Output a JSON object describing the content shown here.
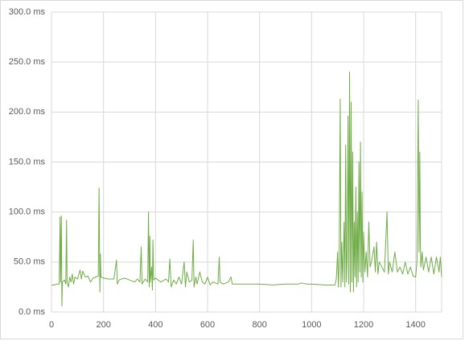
{
  "chart_data": {
    "type": "line",
    "x": [
      0,
      10,
      20,
      30,
      33,
      35,
      38,
      40,
      42,
      50,
      55,
      58,
      60,
      65,
      70,
      75,
      80,
      85,
      90,
      100,
      110,
      115,
      120,
      130,
      140,
      150,
      160,
      170,
      180,
      183,
      186,
      188,
      190,
      200,
      220,
      240,
      250,
      253,
      260,
      280,
      300,
      320,
      330,
      340,
      345,
      348,
      360,
      370,
      373,
      376,
      378,
      380,
      385,
      388,
      390,
      393,
      400,
      420,
      440,
      450,
      455,
      460,
      470,
      480,
      490,
      500,
      510,
      515,
      520,
      530,
      540,
      545,
      548,
      555,
      560,
      570,
      580,
      590,
      600,
      610,
      620,
      640,
      645,
      648,
      660,
      680,
      690,
      695,
      700,
      750,
      800,
      850,
      900,
      950,
      960,
      980,
      1000,
      1050,
      1090,
      1095,
      1100,
      1103,
      1106,
      1110,
      1113,
      1116,
      1120,
      1125,
      1128,
      1131,
      1134,
      1137,
      1140,
      1143,
      1146,
      1149,
      1152,
      1155,
      1158,
      1161,
      1164,
      1167,
      1170,
      1173,
      1176,
      1179,
      1182,
      1185,
      1188,
      1191,
      1194,
      1197,
      1200,
      1205,
      1210,
      1215,
      1220,
      1225,
      1230,
      1240,
      1245,
      1250,
      1255,
      1260,
      1270,
      1280,
      1290,
      1295,
      1300,
      1310,
      1320,
      1330,
      1340,
      1350,
      1360,
      1370,
      1380,
      1390,
      1400,
      1405,
      1410,
      1413,
      1416,
      1418,
      1420,
      1425,
      1430,
      1440,
      1450,
      1460,
      1470,
      1480,
      1490,
      1495,
      1500
    ],
    "series": [
      {
        "color": "#70ad47",
        "values": [
          27,
          27,
          28,
          28,
          95,
          30,
          96,
          6,
          30,
          32,
          28,
          92,
          30,
          25,
          35,
          30,
          38,
          28,
          35,
          33,
          42,
          33,
          41,
          35,
          36,
          30,
          34,
          35,
          36,
          124,
          20,
          58,
          35,
          34,
          33,
          33,
          52,
          28,
          32,
          34,
          32,
          30,
          33,
          30,
          65,
          28,
          33,
          30,
          100,
          25,
          76,
          30,
          45,
          22,
          72,
          32,
          34,
          30,
          33,
          30,
          53,
          25,
          32,
          28,
          35,
          28,
          50,
          25,
          40,
          30,
          32,
          72,
          25,
          35,
          28,
          40,
          30,
          28,
          35,
          27,
          30,
          28,
          55,
          30,
          28,
          30,
          35,
          28,
          28,
          28,
          28,
          27,
          28,
          28,
          29,
          28,
          28,
          27,
          27,
          33,
          60,
          25,
          48,
          213,
          25,
          70,
          30,
          90,
          25,
          167,
          30,
          60,
          196,
          28,
          240,
          20,
          210,
          30,
          160,
          20,
          90,
          35,
          125,
          25,
          100,
          30,
          150,
          40,
          170,
          35,
          120,
          30,
          80,
          40,
          60,
          35,
          90,
          45,
          50,
          65,
          40,
          70,
          38,
          50,
          45,
          40,
          100,
          38,
          50,
          40,
          60,
          40,
          45,
          38,
          50,
          38,
          45,
          36,
          35,
          50,
          212,
          60,
          160,
          70,
          45,
          60,
          42,
          55,
          40,
          55,
          38,
          55,
          40,
          55,
          35
        ]
      }
    ],
    "xlim": [
      0,
      1500
    ],
    "ylim": [
      0,
      300
    ],
    "xticks": [
      0,
      200,
      400,
      600,
      800,
      1000,
      1200,
      1400
    ],
    "yticks": [
      {
        "value": 0,
        "label": "0.0 ms"
      },
      {
        "value": 50,
        "label": "50.0 ms"
      },
      {
        "value": 100,
        "label": "100.0 ms"
      },
      {
        "value": 150,
        "label": "150.0 ms"
      },
      {
        "value": 200,
        "label": "200.0 ms"
      },
      {
        "value": 250,
        "label": "250.0 ms"
      },
      {
        "value": 300,
        "label": "300.0 ms"
      }
    ],
    "grid": true
  }
}
